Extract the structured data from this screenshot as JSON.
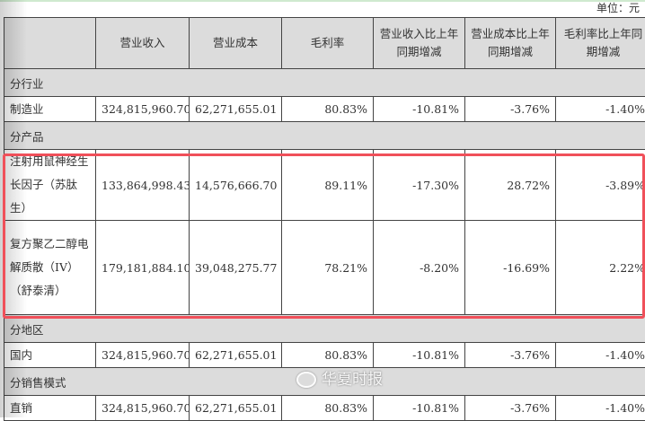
{
  "unit_label": "单位：元",
  "columns": [
    "",
    "营业收入",
    "营业成本",
    "毛利率",
    "营业收入比上年同期增减",
    "营业成本比上年同期增减",
    "毛利率比上年同期增减"
  ],
  "sections": [
    {
      "title": "分行业",
      "rows": [
        {
          "name": "制造业",
          "values": [
            "324,815,960.70",
            "62,271,655.01",
            "80.83%",
            "-10.81%",
            "-3.76%",
            "-1.40%"
          ]
        }
      ]
    },
    {
      "title": "分产品",
      "rows": [
        {
          "name": "注射用鼠神经生长因子（苏肽生）",
          "values": [
            "133,864,998.43",
            "14,576,666.70",
            "89.11%",
            "-17.30%",
            "28.72%",
            "-3.89%"
          ]
        },
        {
          "name": "复方聚乙二醇电解质散（IV）（舒泰清）",
          "values": [
            "179,181,884.10",
            "39,048,275.77",
            "78.21%",
            "-8.20%",
            "-16.69%",
            "2.22%"
          ]
        }
      ]
    },
    {
      "title": "分地区",
      "rows": [
        {
          "name": "国内",
          "values": [
            "324,815,960.70",
            "62,271,655.01",
            "80.83%",
            "-10.81%",
            "-3.76%",
            "-1.40%"
          ]
        }
      ]
    },
    {
      "title": "分销售模式",
      "rows": [
        {
          "name": "直销",
          "values": [
            "324,815,960.70",
            "62,271,655.01",
            "80.83%",
            "-10.81%",
            "-3.76%",
            "-1.40%"
          ]
        }
      ]
    }
  ],
  "watermark": "华夏时报",
  "highlight_color": "#f0505a"
}
